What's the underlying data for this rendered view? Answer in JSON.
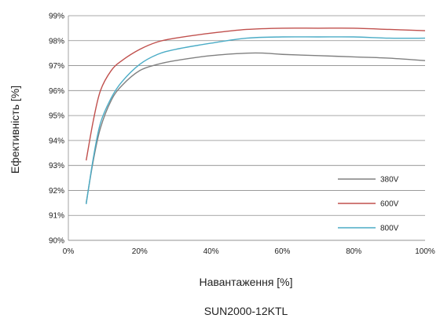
{
  "chart_data": {
    "type": "line",
    "title": "",
    "xlabel": "Навантаження [%]",
    "ylabel": "Ефективність [%]",
    "caption": "SUN2000-12KTL",
    "xlim": [
      0,
      100
    ],
    "ylim": [
      90,
      99
    ],
    "x_ticks": [
      0,
      20,
      40,
      60,
      80,
      100
    ],
    "x_tick_labels": [
      "0%",
      "20%",
      "40%",
      "60%",
      "80%",
      "100%"
    ],
    "y_ticks": [
      90,
      91,
      92,
      93,
      94,
      95,
      96,
      97,
      98,
      99
    ],
    "y_tick_labels": [
      "90%",
      "91%",
      "92%",
      "93%",
      "94%",
      "95%",
      "96%",
      "97%",
      "98%",
      "99%"
    ],
    "grid": "horizontal",
    "legend_position": "bottom-right",
    "series": [
      {
        "name": "380V",
        "color": "#808080",
        "points": [
          [
            5,
            91.5
          ],
          [
            7,
            93.2
          ],
          [
            9,
            94.5
          ],
          [
            12,
            95.6
          ],
          [
            15,
            96.2
          ],
          [
            20,
            96.8
          ],
          [
            25,
            97.05
          ],
          [
            30,
            97.2
          ],
          [
            40,
            97.4
          ],
          [
            50,
            97.5
          ],
          [
            55,
            97.5
          ],
          [
            60,
            97.45
          ],
          [
            70,
            97.4
          ],
          [
            80,
            97.35
          ],
          [
            90,
            97.3
          ],
          [
            100,
            97.2
          ]
        ]
      },
      {
        "name": "600V",
        "color": "#c0504d",
        "points": [
          [
            5,
            93.2
          ],
          [
            7,
            94.8
          ],
          [
            9,
            96.0
          ],
          [
            12,
            96.8
          ],
          [
            15,
            97.2
          ],
          [
            20,
            97.65
          ],
          [
            25,
            97.95
          ],
          [
            30,
            98.1
          ],
          [
            40,
            98.3
          ],
          [
            50,
            98.45
          ],
          [
            60,
            98.5
          ],
          [
            70,
            98.5
          ],
          [
            80,
            98.5
          ],
          [
            90,
            98.45
          ],
          [
            100,
            98.4
          ]
        ]
      },
      {
        "name": "800V",
        "color": "#4bacc6",
        "points": [
          [
            5,
            91.45
          ],
          [
            7,
            93.3
          ],
          [
            9,
            94.7
          ],
          [
            12,
            95.7
          ],
          [
            15,
            96.35
          ],
          [
            20,
            97.05
          ],
          [
            25,
            97.45
          ],
          [
            30,
            97.65
          ],
          [
            40,
            97.9
          ],
          [
            50,
            98.1
          ],
          [
            60,
            98.15
          ],
          [
            70,
            98.15
          ],
          [
            80,
            98.15
          ],
          [
            90,
            98.1
          ],
          [
            100,
            98.1
          ]
        ]
      }
    ]
  }
}
